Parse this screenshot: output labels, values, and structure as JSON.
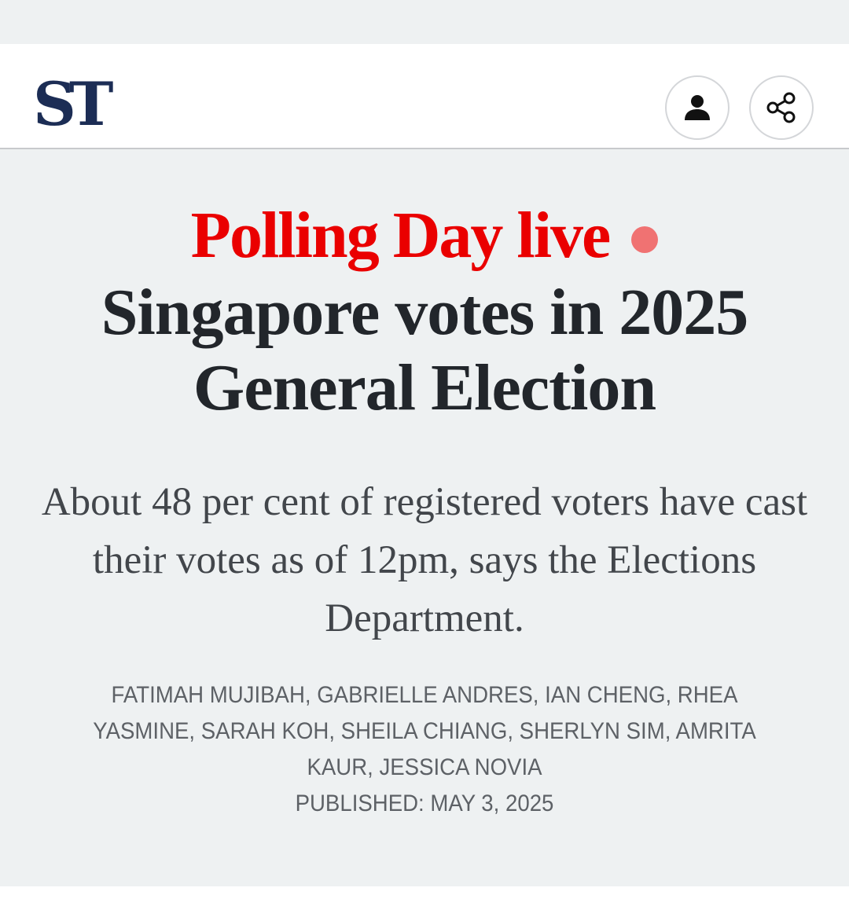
{
  "header": {
    "logo_text": "ST",
    "account_icon": "person-icon",
    "share_icon": "share-icon"
  },
  "article": {
    "kicker": "Polling Day live",
    "title": "Singapore votes in 2025 General Election",
    "standfirst": "About 48 per cent of registered voters have cast their votes as of 12pm, says the Elections Department.",
    "authors": "FATIMAH MUJIBAH, GABRIELLE ANDRES, IAN CHENG, RHEA YASMINE, SARAH KOH, SHEILA CHIANG, SHERLYN SIM, AMRITA KAUR, JESSICA NOVIA",
    "published": "PUBLISHED: MAY 3, 2025"
  },
  "colors": {
    "brand_navy": "#1c2d55",
    "kicker_red": "#ea0000",
    "live_dot": "#f07272",
    "background": "#eef1f2"
  }
}
